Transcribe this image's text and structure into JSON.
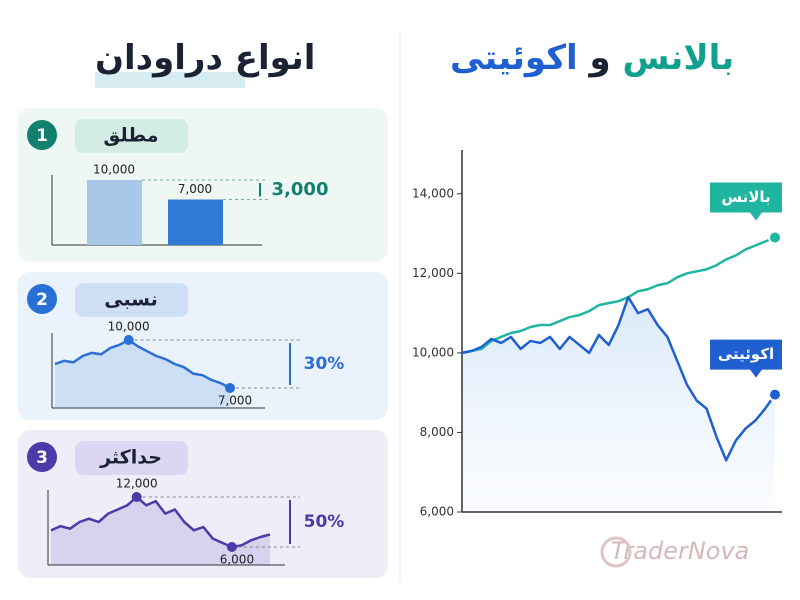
{
  "header": {
    "title": "انواع دراودان"
  },
  "watermark": "TraderNova",
  "chart_data": [
    {
      "type": "line",
      "title": [
        "بالانس",
        "و",
        "اکوئیتی"
      ],
      "categories": [
        null,
        null,
        null,
        null,
        null,
        null,
        null,
        null,
        null,
        null,
        null,
        null,
        null,
        null,
        null,
        null,
        null,
        null,
        null,
        null,
        null,
        null,
        null,
        null,
        null,
        null,
        null,
        null,
        null,
        null,
        null,
        null,
        null
      ],
      "series": [
        {
          "name": "بالانس",
          "color": "#1fb5a0",
          "values": [
            10000,
            10050,
            10100,
            10300,
            10400,
            10500,
            10550,
            10650,
            10700,
            10700,
            10800,
            10900,
            10950,
            11050,
            11200,
            11250,
            11300,
            11400,
            11550,
            11600,
            11700,
            11750,
            11900,
            12000,
            12050,
            12100,
            12200,
            12350,
            12450,
            12600,
            12700,
            12800,
            12900
          ]
        },
        {
          "name": "اکوئیتی",
          "color": "#1f5fd0",
          "values": [
            10000,
            10050,
            10150,
            10350,
            10250,
            10400,
            10100,
            10300,
            10250,
            10400,
            10100,
            10400,
            10200,
            10000,
            10450,
            10200,
            10700,
            11400,
            11000,
            11100,
            10700,
            10400,
            9800,
            9200,
            8800,
            8600,
            7900,
            7300,
            7800,
            8100,
            8300,
            8600,
            8950
          ]
        }
      ],
      "ylim": [
        6000,
        15100
      ],
      "yticks": [
        {
          "value": 6000,
          "label": "6,000"
        },
        {
          "value": 8000,
          "label": "8,000"
        },
        {
          "value": 10000,
          "label": "10,000"
        },
        {
          "value": 12000,
          "label": "12,000"
        },
        {
          "value": 14000,
          "label": "14,000"
        }
      ]
    },
    {
      "type": "bar",
      "number": "1",
      "title": "مطلق",
      "annotation": "3,000",
      "categories": [
        null,
        null
      ],
      "values": [
        10000,
        7000
      ],
      "value_labels": [
        "10,000",
        "7,000"
      ],
      "colors": [
        "#a8c8ea",
        "#2f7bd6"
      ]
    },
    {
      "type": "line",
      "number": "2",
      "title": "نسبی",
      "annotation": "30%",
      "color": "#2a6fd6",
      "values": [
        8500,
        8700,
        8600,
        9000,
        9200,
        9100,
        9500,
        9700,
        10000,
        9600,
        9300,
        9000,
        8800,
        8500,
        8300,
        7900,
        7800,
        7500,
        7300,
        7000
      ],
      "value_labels": [
        null,
        null,
        null,
        null,
        null,
        null,
        null,
        null,
        "10,000",
        null,
        null,
        null,
        null,
        null,
        null,
        null,
        null,
        null,
        null,
        "7,000"
      ]
    },
    {
      "type": "line",
      "number": "3",
      "title": "حداکثر",
      "annotation": "50%",
      "color": "#4b3aa8",
      "values": [
        8000,
        8500,
        8200,
        9000,
        9400,
        9000,
        10000,
        10500,
        11000,
        12000,
        11000,
        11500,
        10000,
        10500,
        9000,
        8000,
        8400,
        7000,
        6500,
        6000,
        6200,
        6800,
        7200,
        7500
      ],
      "value_labels": [
        null,
        null,
        null,
        null,
        null,
        null,
        null,
        null,
        null,
        "12,000",
        null,
        null,
        null,
        null,
        null,
        null,
        null,
        null,
        null,
        "6,000",
        null,
        null,
        null,
        null
      ]
    }
  ]
}
